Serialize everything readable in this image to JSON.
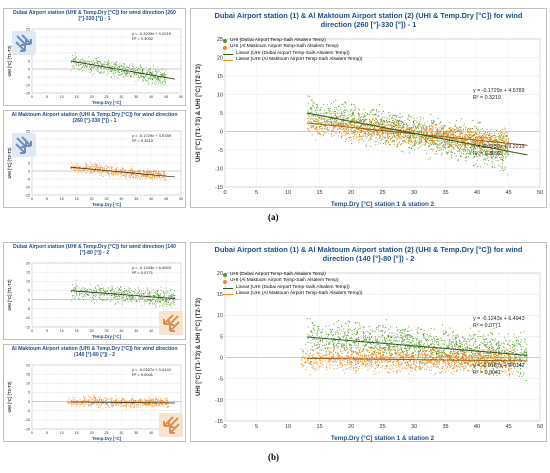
{
  "figure": {
    "label_a": "(a)",
    "label_b": "(b)"
  },
  "colors": {
    "green": "#4e9a2a",
    "orange": "#f08a1c",
    "green_line": "#2e5a18",
    "orange_line": "#a65a10",
    "title": "#1f4e8c"
  },
  "icons": {
    "wind_a": "wind-arrows-southwest-icon",
    "wind_b": "wind-arrows-southeast-icon"
  },
  "chart_data": [
    {
      "id": "a_small_dubai",
      "type": "scatter",
      "title": "Dubai Airport station (UHI & Temp.Dry [°C]) for wind direction (260 [°]-330 [°]) - 1",
      "xlabel": "Temp.Dry [°C]",
      "ylabel": "UHI [°C] (T1-T3)",
      "xlim": [
        0,
        50
      ],
      "ylim": [
        -15,
        25
      ],
      "xticks": [
        0,
        5,
        10,
        15,
        20,
        25,
        30,
        35,
        40,
        45,
        50
      ],
      "yticks": [
        -15,
        -10,
        -5,
        0,
        5,
        10,
        15,
        20,
        25
      ],
      "series": [
        {
          "color": "#4e9a2a",
          "x_range": [
            13,
            45
          ],
          "slope": -0.3239,
          "intercept": 9.2219,
          "spread": 3.2,
          "count": 650
        }
      ],
      "trendlines": [
        {
          "slope": -0.3239,
          "intercept": 9.2219
        }
      ],
      "equation": "y = -0.3239x + 9.2219",
      "r2": "R² = 0.3092",
      "grid": true
    },
    {
      "id": "a_small_maktoum",
      "type": "scatter",
      "title": "Al Maktoum Airport station (UHI & Temp.Dry [°C]) for wind direction (260 [°]-330 [°]) - 1",
      "xlabel": "Temp.Dry [°C]",
      "ylabel": "UHI [°C] (T2-T3)",
      "xlim": [
        0,
        50
      ],
      "ylim": [
        -15,
        25
      ],
      "xticks": [
        0,
        5,
        10,
        15,
        20,
        25,
        30,
        35,
        40,
        45,
        50
      ],
      "yticks": [
        -15,
        -10,
        -5,
        0,
        5,
        10,
        15,
        20,
        25
      ],
      "series": [
        {
          "color": "#f08a1c",
          "x_range": [
            13,
            45
          ],
          "slope": -0.1729,
          "intercept": 4.5789,
          "spread": 2.3,
          "count": 650
        }
      ],
      "trendlines": [
        {
          "slope": -0.1729,
          "intercept": 4.5789
        }
      ],
      "equation": "y = -0.1729x + 4.5789",
      "r2": "R² = 0.3219",
      "grid": true
    },
    {
      "id": "a_big",
      "type": "scatter",
      "title": "Dubai Airport station (1) & Al Maktoum Airport station (2) (UHI & Temp.Dry [°C]) for wind direction (260 [°]-330 [°]) - 1",
      "xlabel": "Temp.Dry [°C] station 1 & station 2",
      "ylabel": "UHI [°C] (T1-T3) & UHI [°C] (T2-T3)",
      "xlim": [
        0,
        50
      ],
      "ylim": [
        -15,
        25
      ],
      "xticks": [
        0,
        5,
        10,
        15,
        20,
        25,
        30,
        35,
        40,
        45,
        50
      ],
      "yticks": [
        -15,
        -10,
        -5,
        0,
        5,
        10,
        15,
        20,
        25
      ],
      "legend": [
        "UHI   (Dubai Airport Temp-Saih Alsalem Temp)",
        "UHI   (Al Maktoum Airport Temp-Saih Alsalem Temp)",
        "Linear  (UHI   (Dubai Airport Temp-Saih Alsalem Temp))",
        "Linear  (UHI   (Al Maktoum Airport Temp-Saih Alsalem Temp))"
      ],
      "series": [
        {
          "color": "#4e9a2a",
          "x_range": [
            13,
            45
          ],
          "slope": -0.3239,
          "intercept": 9.2219,
          "spread": 3.2,
          "count": 1500
        },
        {
          "color": "#f08a1c",
          "x_range": [
            13,
            45
          ],
          "slope": -0.1729,
          "intercept": 4.5789,
          "spread": 2.3,
          "count": 1500
        }
      ],
      "trendlines": [
        {
          "slope": -0.1729,
          "intercept": 4.5789,
          "color": "#a65a10"
        },
        {
          "slope": -0.3239,
          "intercept": 9.2219,
          "color": "#2e5a18"
        }
      ],
      "equations": [
        {
          "eq": "y = -0.1729x + 4.5789",
          "r2": "R² = 0.3219"
        },
        {
          "eq": "y = -0.3239x + 9.2219",
          "r2": "R² = 0.3092"
        }
      ],
      "grid": true
    },
    {
      "id": "b_small_dubai",
      "type": "scatter",
      "title": "Dubai Airport station (UHI & Temp.Dry [°C]) for wind direction (140 [°]-80 [°]) - 2",
      "xlabel": "Temp.Dry [°C]",
      "ylabel": "UHI [°C] (T1-T3)",
      "xlim": [
        0,
        50
      ],
      "ylim": [
        -15,
        20
      ],
      "xticks": [
        0,
        5,
        10,
        15,
        20,
        25,
        30,
        35,
        40,
        45,
        50
      ],
      "yticks": [
        -15,
        -10,
        -5,
        0,
        5,
        10,
        15,
        20
      ],
      "series": [
        {
          "color": "#4e9a2a",
          "x_range": [
            13,
            48
          ],
          "slope": -0.1243,
          "intercept": 6.4943,
          "spread": 3.0,
          "count": 650
        }
      ],
      "trendlines": [
        {
          "slope": -0.1243,
          "intercept": 6.4943
        }
      ],
      "equation": "y = -0.1243x + 6.4943",
      "r2": "R² = 0.0771",
      "grid": true
    },
    {
      "id": "b_small_maktoum",
      "type": "scatter",
      "title": "Al Maktoum Airport station (UHI & Temp.Dry [°C]) for wind direction (140 [°]-80 [°]) - 2",
      "xlabel": "Temp.Dry [°C]",
      "ylabel": "UHI [°C] (T2-T3)",
      "xlim": [
        0,
        50
      ],
      "ylim": [
        -15,
        20
      ],
      "xticks": [
        0,
        5,
        10,
        15,
        20,
        25,
        30,
        35,
        40,
        45,
        50
      ],
      "yticks": [
        -15,
        -10,
        -5,
        0,
        5,
        10,
        15,
        20
      ],
      "series": [
        {
          "color": "#f08a1c",
          "x_range": [
            12,
            46
          ],
          "slope": -0.0167,
          "intercept": 0.0142,
          "spread": 2.0,
          "count": 650
        }
      ],
      "trendlines": [
        {
          "slope": -0.0167,
          "intercept": 0.0142
        }
      ],
      "equation": "y = -0.0167x + 0.0142",
      "r2": "R² = 0.0041",
      "grid": true
    },
    {
      "id": "b_big",
      "type": "scatter",
      "title": "Dubai Airport station (1) & Al Maktoum Airport station (2) (UHI & Temp.Dry [°C]) for wind direction (140 [°]-80 [°]) - 2",
      "xlabel": "Temp.Dry [°C] station 1 & station 2",
      "ylabel": "UHI [°C] (T1-T3) & UHI [°C] (T2-T3)",
      "xlim": [
        0,
        50
      ],
      "ylim": [
        -15,
        20
      ],
      "xticks": [
        0,
        5,
        10,
        15,
        20,
        25,
        30,
        35,
        40,
        45,
        50
      ],
      "yticks": [
        -15,
        -10,
        -5,
        0,
        5,
        10,
        15,
        20
      ],
      "legend": [
        "UHI   (Dubai Airport Temp-Saih Alsalem Temp)",
        "UHI   (Al Maktoum Airport Temp-Saih Alsalem Temp)",
        "Linear  (UHI   (Dubai Airport Temp-Saih Alsalem Temp))",
        "Linear  (UHI   (Al Maktoum Airport Temp-Saih Alsalem Temp))"
      ],
      "series": [
        {
          "color": "#4e9a2a",
          "x_range": [
            13,
            48
          ],
          "slope": -0.1243,
          "intercept": 6.4943,
          "spread": 3.0,
          "count": 1500
        },
        {
          "color": "#f08a1c",
          "x_range": [
            12,
            46
          ],
          "slope": -0.0167,
          "intercept": 0.0142,
          "spread": 2.0,
          "count": 1500
        }
      ],
      "trendlines": [
        {
          "slope": -0.1243,
          "intercept": 6.4943,
          "color": "#2e5a18"
        },
        {
          "slope": -0.0167,
          "intercept": 0.0142,
          "color": "#a65a10"
        }
      ],
      "equations": [
        {
          "eq": "y = -0.1243x + 6.4943",
          "r2": "R² = 0.0771"
        },
        {
          "eq": "y = -0.0167x + 0.0142",
          "r2": "R² = 0.0041"
        }
      ],
      "grid": true
    }
  ]
}
